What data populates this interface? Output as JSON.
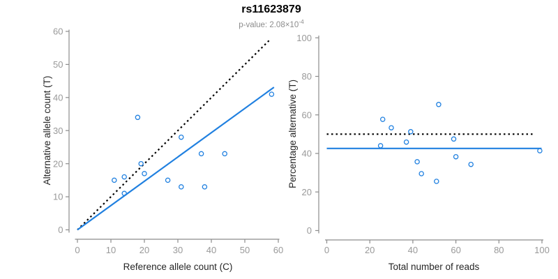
{
  "header": {
    "title": "rs11623879",
    "pvalue_prefix": "p-value: 2.08×10",
    "pvalue_exponent": "-4"
  },
  "colors": {
    "point_blue": "#2080E0",
    "line_black": "#000000",
    "axis_gray": "#8c8c8c",
    "tick_label_gray": "#999999",
    "axis_title_dark": "#262626",
    "subtitle_gray": "#8c8c8c"
  },
  "chart_data": [
    {
      "id": "allele-counts-scatter",
      "type": "scatter",
      "xlabel": "Reference allele count (C)",
      "ylabel": "Alternative allele count (T)",
      "xlim": [
        0,
        60
      ],
      "ylim": [
        0,
        60
      ],
      "xticks": [
        0,
        10,
        20,
        30,
        40,
        50,
        60
      ],
      "yticks": [
        0,
        10,
        20,
        30,
        40,
        50,
        60
      ],
      "grid": false,
      "points": [
        [
          11,
          15
        ],
        [
          14,
          16
        ],
        [
          14,
          11
        ],
        [
          18,
          34
        ],
        [
          19,
          20
        ],
        [
          20,
          17
        ],
        [
          27,
          15
        ],
        [
          31,
          28
        ],
        [
          31,
          13
        ],
        [
          37,
          23
        ],
        [
          38,
          13
        ],
        [
          44,
          23
        ],
        [
          58,
          41
        ]
      ],
      "lines": [
        {
          "name": "identity-line",
          "style": "dotted",
          "color": "#000000",
          "x1": 0,
          "y1": 0,
          "x2": 57.5,
          "y2": 57.5
        },
        {
          "name": "fit-line",
          "style": "solid",
          "color": "#2080E0",
          "x1": 0,
          "y1": 0,
          "x2": 58.7,
          "y2": 43.1
        }
      ]
    },
    {
      "id": "percentage-alternative-scatter",
      "type": "scatter",
      "xlabel": "Total number of reads",
      "ylabel": "Percentage alternative (T)",
      "xlim": [
        0,
        100
      ],
      "ylim": [
        0,
        100
      ],
      "xticks": [
        0,
        20,
        40,
        60,
        80,
        100
      ],
      "yticks": [
        0,
        20,
        40,
        60,
        80,
        100
      ],
      "grid": false,
      "points": [
        [
          26,
          57.7
        ],
        [
          30,
          53.3
        ],
        [
          25,
          44
        ],
        [
          52,
          65.4
        ],
        [
          39,
          51.3
        ],
        [
          37,
          45.9
        ],
        [
          42,
          35.7
        ],
        [
          59,
          47.5
        ],
        [
          44,
          29.5
        ],
        [
          60,
          38.3
        ],
        [
          51,
          25.5
        ],
        [
          67,
          34.3
        ],
        [
          99,
          41.4
        ]
      ],
      "lines": [
        {
          "name": "reference-50pct-line",
          "style": "dotted",
          "color": "#000000",
          "x1": 0,
          "y1": 50,
          "x2": 96.5,
          "y2": 50
        },
        {
          "name": "mean-percentage-line",
          "style": "solid",
          "color": "#2080E0",
          "x1": 0,
          "y1": 42.6,
          "x2": 99.8,
          "y2": 42.6
        }
      ]
    }
  ]
}
